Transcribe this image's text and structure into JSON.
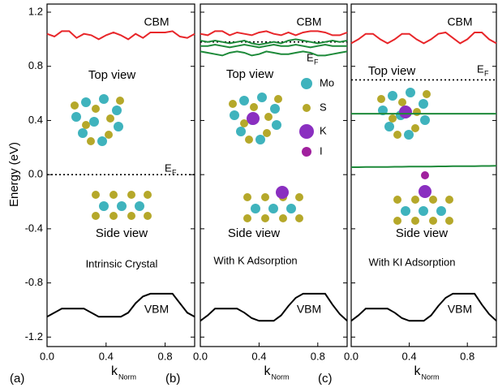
{
  "chart_data": [
    {
      "type": "line",
      "panel_label": "(a)",
      "y_label": "Energy (eV)",
      "ylim": [
        -1.27,
        1.26
      ],
      "yticks": [
        1.2,
        0.8,
        0.4,
        {
          "value": 0,
          "label": "0.0"
        },
        -0.4,
        -0.8,
        -1.2
      ],
      "x": [
        0,
        0.05,
        0.1,
        0.15,
        0.2,
        0.25,
        0.3,
        0.35,
        0.4,
        0.45,
        0.5,
        0.55,
        0.6,
        0.65,
        0.7,
        0.75,
        0.8,
        0.85,
        0.9,
        0.95,
        1
      ],
      "xlim": [
        0,
        1
      ],
      "xticks": [
        {
          "value": 0,
          "label": "0.0"
        },
        0.4,
        0.8
      ],
      "x_label": "k",
      "x_label_subscript": "Norm",
      "series": [
        {
          "color": "#e8262a",
          "values": [
            1.04,
            1.02,
            1.06,
            1.06,
            1.01,
            1.04,
            1.03,
            1.0,
            1.03,
            1.05,
            1.03,
            1.0,
            1.04,
            1.01,
            1.05,
            1.05,
            1.05,
            1.06,
            1.02,
            1.01,
            1.04
          ]
        },
        {
          "color": "#000000",
          "values": [
            -1.05,
            -1.02,
            -0.99,
            -0.99,
            -0.99,
            -0.99,
            -1.02,
            -1.05,
            -1.05,
            -1.05,
            -1.05,
            -1.02,
            -0.95,
            -0.9,
            -0.88,
            -0.88,
            -0.88,
            -0.88,
            -0.95,
            -1.02,
            -1.05
          ]
        }
      ],
      "fermi_level": 0,
      "fermi_symbol": "E",
      "fermi_subscript": "F",
      "cbm_label": "CBM",
      "vbm_label": "VBM",
      "top_view_label": "Top view",
      "side_view_label": "Side view",
      "caption": "Intrinsic Crystal"
    },
    {
      "type": "line",
      "panel_label": "(b)",
      "x": [
        0,
        0.05,
        0.1,
        0.15,
        0.2,
        0.25,
        0.3,
        0.35,
        0.4,
        0.45,
        0.5,
        0.55,
        0.6,
        0.65,
        0.7,
        0.75,
        0.8,
        0.85,
        0.9,
        0.95,
        1
      ],
      "xlim": [
        0,
        1
      ],
      "xticks": [
        {
          "value": 0,
          "label": "0.0"
        },
        0.4,
        0.8
      ],
      "x_label": "k",
      "x_label_subscript": "Norm",
      "series": [
        {
          "color": "#e8262a",
          "values": [
            1.04,
            1.03,
            1.06,
            1.06,
            1.03,
            1.05,
            1.04,
            1.03,
            1.05,
            1.06,
            1.04,
            1.03,
            1.05,
            1.03,
            1.05,
            1.06,
            1.06,
            1.05,
            1.03,
            1.03,
            1.05
          ]
        },
        {
          "color": "#1e8a3a",
          "values": [
            0.99,
            0.98,
            0.99,
            0.98,
            0.97,
            0.98,
            0.99,
            0.97,
            0.96,
            0.97,
            0.98,
            0.97,
            0.99,
            1.0,
            0.99,
            0.98,
            0.97,
            0.98,
            0.99,
            0.98,
            0.99
          ]
        },
        {
          "color": "#1e8a3a",
          "values": [
            0.95,
            0.95,
            0.96,
            0.95,
            0.94,
            0.95,
            0.96,
            0.95,
            0.94,
            0.95,
            0.96,
            0.95,
            0.95,
            0.96,
            0.95,
            0.94,
            0.95,
            0.96,
            0.95,
            0.95,
            0.95
          ]
        },
        {
          "color": "#1e8a3a",
          "values": [
            0.91,
            0.9,
            0.89,
            0.88,
            0.9,
            0.91,
            0.9,
            0.88,
            0.89,
            0.91,
            0.9,
            0.89,
            0.89,
            0.9,
            0.91,
            0.9,
            0.88,
            0.88,
            0.89,
            0.9,
            0.91
          ]
        },
        {
          "color": "#000000",
          "values": [
            -1.08,
            -1.04,
            -0.99,
            -0.99,
            -0.99,
            -0.99,
            -1.02,
            -1.06,
            -1.08,
            -1.08,
            -1.08,
            -1.04,
            -0.97,
            -0.91,
            -0.88,
            -0.88,
            -0.88,
            -0.88,
            -0.96,
            -1.03,
            -1.08
          ]
        }
      ],
      "fermi_level": 0.98,
      "fermi_symbol": "E",
      "fermi_subscript": "F",
      "cbm_label": "CBM",
      "vbm_label": "VBM",
      "top_view_label": "Top view",
      "side_view_label": "Side view",
      "caption": "With K Adsorption",
      "atom_legend": [
        {
          "label": "Mo",
          "color": "#3fb3bd"
        },
        {
          "label": "S",
          "color": "#b5a82a"
        },
        {
          "label": "K",
          "color": "#8a2fc0"
        },
        {
          "label": "I",
          "color": "#a0209e"
        }
      ]
    },
    {
      "type": "line",
      "panel_label": "(c)",
      "x": [
        0,
        0.05,
        0.1,
        0.15,
        0.2,
        0.25,
        0.3,
        0.35,
        0.4,
        0.45,
        0.5,
        0.55,
        0.6,
        0.65,
        0.7,
        0.75,
        0.8,
        0.85,
        0.9,
        0.95,
        1
      ],
      "xlim": [
        0,
        1
      ],
      "xticks": [
        {
          "value": 0,
          "label": "0.0"
        },
        0.4,
        0.8
      ],
      "x_label": "k",
      "x_label_subscript": "Norm",
      "series": [
        {
          "color": "#e8262a",
          "values": [
            0.97,
            1.0,
            1.04,
            1.04,
            1.0,
            0.97,
            1.0,
            1.04,
            1.04,
            1.0,
            0.97,
            1.0,
            1.04,
            1.05,
            1.01,
            0.97,
            1.0,
            1.05,
            1.05,
            1.0,
            0.97
          ]
        },
        {
          "color": "#1e8a3a",
          "values": [
            0.45,
            0.45,
            0.45,
            0.45,
            0.45,
            0.45,
            0.45,
            0.45,
            0.45,
            0.45,
            0.45,
            0.45,
            0.45,
            0.45,
            0.45,
            0.45,
            0.45,
            0.45,
            0.45,
            0.45,
            0.45
          ]
        },
        {
          "color": "#1e8a3a",
          "values": [
            0.055,
            0.055,
            0.056,
            0.056,
            0.057,
            0.057,
            0.058,
            0.058,
            0.059,
            0.059,
            0.06,
            0.06,
            0.061,
            0.061,
            0.062,
            0.062,
            0.063,
            0.063,
            0.064,
            0.064,
            0.065
          ]
        },
        {
          "color": "#000000",
          "values": [
            -1.08,
            -1.04,
            -0.99,
            -0.99,
            -0.99,
            -0.99,
            -1.02,
            -1.06,
            -1.08,
            -1.08,
            -1.08,
            -1.04,
            -0.97,
            -0.91,
            -0.88,
            -0.88,
            -0.88,
            -0.88,
            -0.96,
            -1.03,
            -1.08
          ]
        }
      ],
      "fermi_level": 0.7,
      "fermi_symbol": "E",
      "fermi_subscript": "F",
      "cbm_label": "CBM",
      "vbm_label": "VBM",
      "top_view_label": "Top view",
      "side_view_label": "Side view",
      "caption": "With KI Adsorption"
    }
  ]
}
